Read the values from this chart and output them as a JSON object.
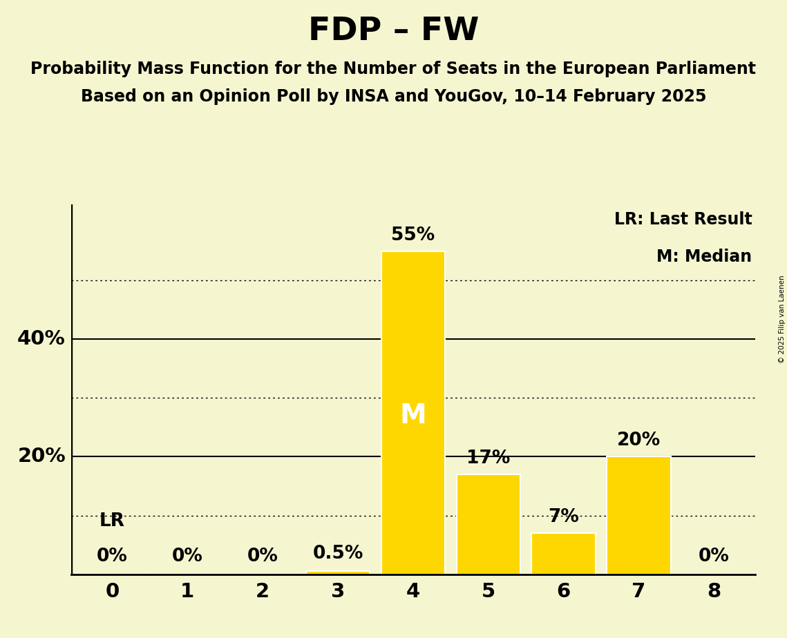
{
  "title": "FDP – FW",
  "subtitle1": "Probability Mass Function for the Number of Seats in the European Parliament",
  "subtitle2": "Based on an Opinion Poll by INSA and YouGov, 10–14 February 2025",
  "copyright": "© 2025 Filip van Laenen",
  "categories": [
    0,
    1,
    2,
    3,
    4,
    5,
    6,
    7,
    8
  ],
  "values": [
    0.0,
    0.0,
    0.0,
    0.5,
    55.0,
    17.0,
    7.0,
    20.0,
    0.0
  ],
  "labels": [
    "0%",
    "0%",
    "0%",
    "0.5%",
    "55%",
    "17%",
    "7%",
    "20%",
    "0%"
  ],
  "bar_color": "#FFD700",
  "median_seat": 4,
  "median_label": "M",
  "lr_seat": 0,
  "lr_label": "LR",
  "background_color": "#F5F5D0",
  "solid_gridlines": [
    20,
    40
  ],
  "dotted_gridlines": [
    10,
    30,
    50
  ],
  "legend_lr": "LR: Last Result",
  "legend_m": "M: Median",
  "title_fontsize": 34,
  "subtitle_fontsize": 17,
  "label_fontsize": 19,
  "tick_fontsize": 21,
  "legend_fontsize": 17,
  "median_fontsize": 28,
  "ylim": [
    0,
    63
  ],
  "xlim": [
    -0.55,
    8.55
  ]
}
